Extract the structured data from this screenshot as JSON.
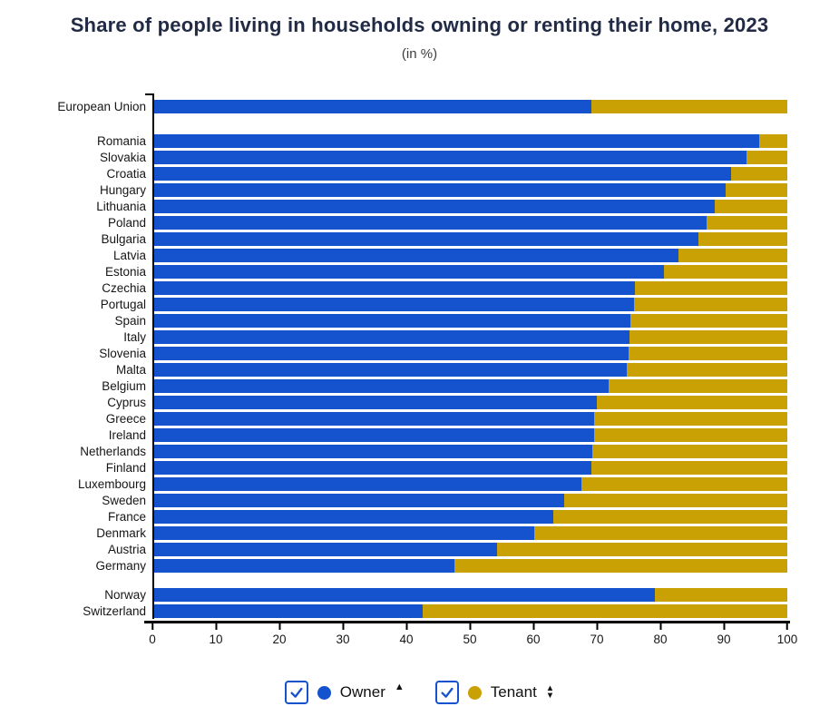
{
  "header": {
    "title": "Share of people living in households owning or renting their home, 2023",
    "subtitle": "(in %)"
  },
  "colors": {
    "owner": "#1552cd",
    "tenant": "#c9a104",
    "title_text": "#222b45",
    "axis": "#000000"
  },
  "legend": {
    "owner": {
      "label": "Owner",
      "checked": true,
      "icon": "checkbox-checked-icon",
      "sort_icon": "sort-ascending-icon",
      "sort_glyph_up": "▲"
    },
    "tenant": {
      "label": "Tenant",
      "checked": true,
      "icon": "checkbox-checked-icon",
      "sort_icon": "sort-both-icon",
      "sort_glyph_up": "▲",
      "sort_glyph_down": "▼"
    }
  },
  "x_axis": {
    "min": 0,
    "max": 100,
    "ticks": [
      0,
      10,
      20,
      30,
      40,
      50,
      60,
      70,
      80,
      90,
      100
    ]
  },
  "chart_data": {
    "type": "bar",
    "orientation": "horizontal",
    "stacked": true,
    "unit": "%",
    "title": "Share of people living in households owning or renting their home, 2023",
    "subtitle": "(in %)",
    "xlim": [
      0,
      100
    ],
    "series_names": [
      "Owner",
      "Tenant"
    ],
    "legend_position": "bottom",
    "grid": false,
    "groups": [
      {
        "gap_before": 0,
        "rows": [
          {
            "label": "European Union",
            "owner": 69.2,
            "tenant": 30.8
          }
        ]
      },
      {
        "gap_before": 20,
        "rows": [
          {
            "label": "Romania",
            "owner": 95.6,
            "tenant": 4.4
          },
          {
            "label": "Slovakia",
            "owner": 93.6,
            "tenant": 6.4
          },
          {
            "label": "Croatia",
            "owner": 91.1,
            "tenant": 8.9
          },
          {
            "label": "Hungary",
            "owner": 90.3,
            "tenant": 9.7
          },
          {
            "label": "Lithuania",
            "owner": 88.6,
            "tenant": 11.4
          },
          {
            "label": "Poland",
            "owner": 87.3,
            "tenant": 12.7
          },
          {
            "label": "Bulgaria",
            "owner": 86.0,
            "tenant": 14.0
          },
          {
            "label": "Latvia",
            "owner": 82.8,
            "tenant": 17.2
          },
          {
            "label": "Estonia",
            "owner": 80.5,
            "tenant": 19.5
          },
          {
            "label": "Czechia",
            "owner": 76.0,
            "tenant": 24.0
          },
          {
            "label": "Portugal",
            "owner": 75.9,
            "tenant": 24.1
          },
          {
            "label": "Spain",
            "owner": 75.3,
            "tenant": 24.7
          },
          {
            "label": "Italy",
            "owner": 75.2,
            "tenant": 24.8
          },
          {
            "label": "Slovenia",
            "owner": 75.0,
            "tenant": 25.0
          },
          {
            "label": "Malta",
            "owner": 74.7,
            "tenant": 25.3
          },
          {
            "label": "Belgium",
            "owner": 71.8,
            "tenant": 28.2
          },
          {
            "label": "Cyprus",
            "owner": 70.0,
            "tenant": 30.0
          },
          {
            "label": "Greece",
            "owner": 69.6,
            "tenant": 30.4
          },
          {
            "label": "Ireland",
            "owner": 69.5,
            "tenant": 30.5
          },
          {
            "label": "Netherlands",
            "owner": 69.3,
            "tenant": 30.7
          },
          {
            "label": "Finland",
            "owner": 69.1,
            "tenant": 30.9
          },
          {
            "label": "Luxembourg",
            "owner": 67.5,
            "tenant": 32.5
          },
          {
            "label": "Sweden",
            "owner": 64.9,
            "tenant": 35.1
          },
          {
            "label": "France",
            "owner": 63.2,
            "tenant": 36.8
          },
          {
            "label": "Denmark",
            "owner": 60.1,
            "tenant": 39.9
          },
          {
            "label": "Austria",
            "owner": 54.3,
            "tenant": 45.7
          },
          {
            "label": "Germany",
            "owner": 47.6,
            "tenant": 52.4
          }
        ]
      },
      {
        "gap_before": 14,
        "rows": [
          {
            "label": "Norway",
            "owner": 79.2,
            "tenant": 20.8
          },
          {
            "label": "Switzerland",
            "owner": 42.5,
            "tenant": 57.5
          }
        ]
      }
    ]
  }
}
